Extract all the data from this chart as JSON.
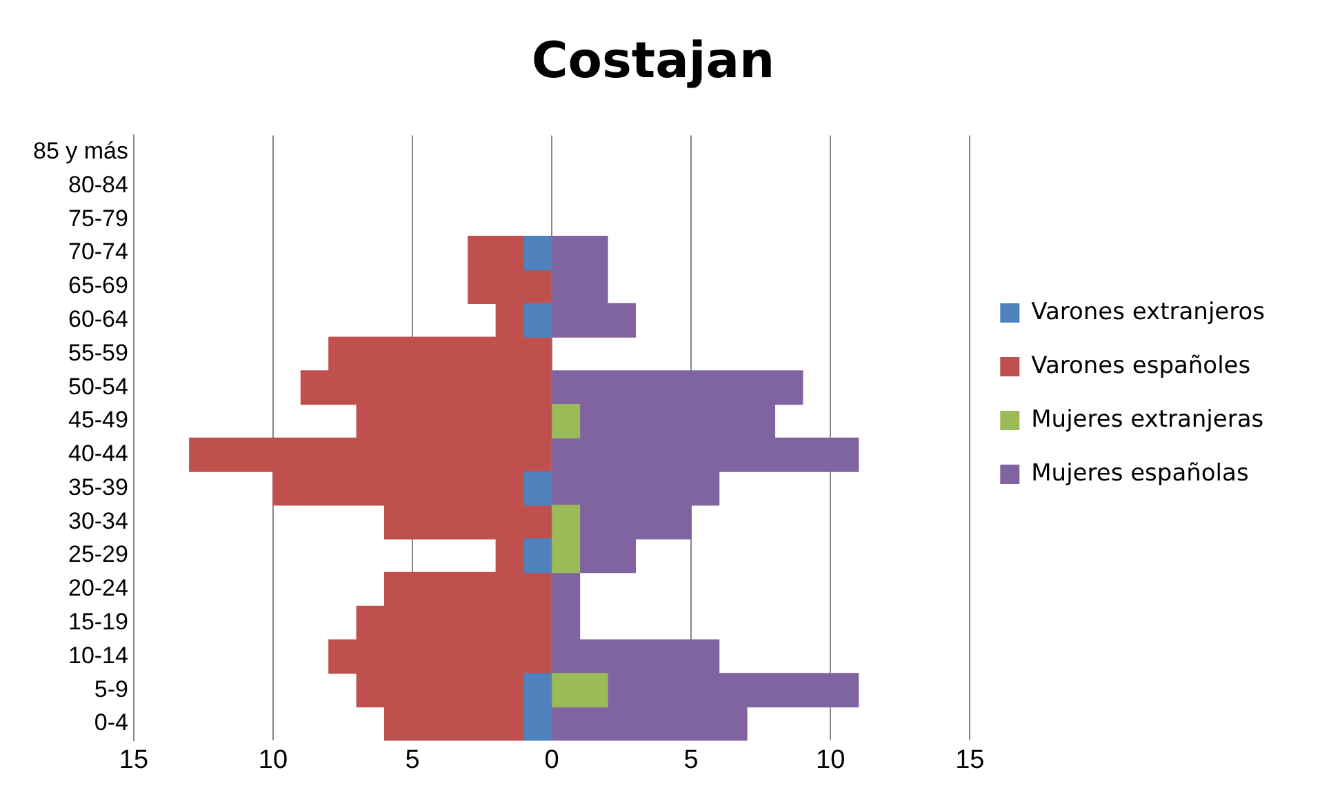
{
  "chart_data": {
    "type": "bar",
    "orientation": "horizontal",
    "stacked": true,
    "title": "Costajan",
    "categories": [
      "85 y más",
      "80-84",
      "75-79",
      "70-74",
      "65-69",
      "60-64",
      "55-59",
      "50-54",
      "45-49",
      "40-44",
      "35-39",
      "30-34",
      "25-29",
      "20-24",
      "15-19",
      "10-14",
      "5-9",
      "0-4"
    ],
    "series": [
      {
        "name": "Varones extranjeros",
        "color": "#4f81bd",
        "values": [
          null,
          null,
          null,
          -1,
          null,
          -1,
          null,
          null,
          null,
          null,
          -1,
          null,
          -1,
          null,
          null,
          null,
          -1,
          -1
        ]
      },
      {
        "name": "Varones españoles",
        "color": "#c0504d",
        "values": [
          null,
          null,
          null,
          -2,
          -3,
          -1,
          -8,
          -9,
          -7,
          -13,
          -9,
          -6,
          -1,
          -6,
          -7,
          -8,
          -6,
          -5
        ]
      },
      {
        "name": "Mujeres extranjeras",
        "color": "#9bbb59",
        "values": [
          null,
          null,
          null,
          null,
          null,
          null,
          null,
          null,
          1,
          null,
          null,
          1,
          1,
          null,
          null,
          null,
          2,
          null
        ]
      },
      {
        "name": "Mujeres españolas",
        "color": "#8064a2",
        "values": [
          null,
          null,
          null,
          2,
          2,
          3,
          null,
          9,
          7,
          11,
          6,
          4,
          2,
          1,
          1,
          6,
          9,
          7
        ]
      }
    ],
    "xlim": [
      -15,
      15
    ],
    "xticks": [
      {
        "value": -15,
        "label": "15"
      },
      {
        "value": -10,
        "label": "10"
      },
      {
        "value": -5,
        "label": "5"
      },
      0,
      5,
      10,
      15
    ],
    "grid": "x",
    "legend": "right"
  }
}
